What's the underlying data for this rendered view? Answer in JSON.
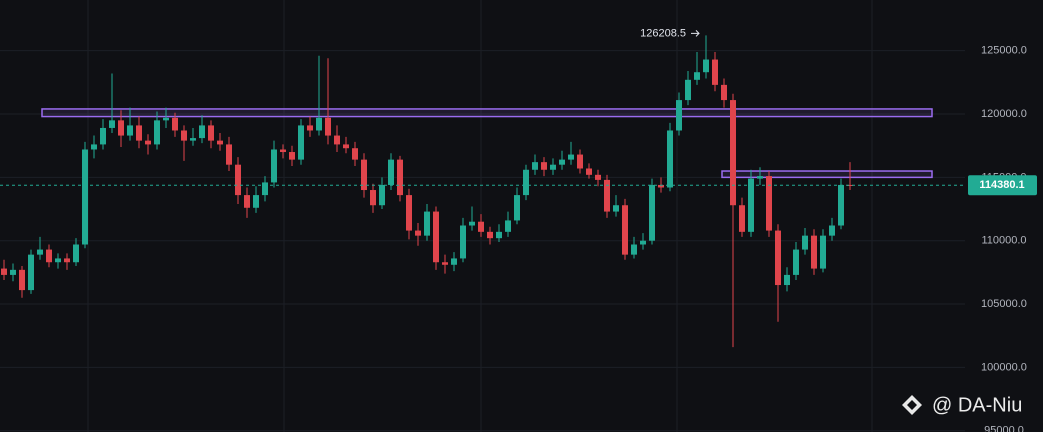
{
  "chart_data": {
    "type": "candlestick",
    "up_color": "#22ab94",
    "down_color": "#e0454c",
    "ylim": [
      94900,
      129000
    ],
    "yticks": [
      {
        "value": 95000,
        "label": "95000.0"
      },
      {
        "value": 100000,
        "label": "100000.0"
      },
      {
        "value": 105000,
        "label": "105000.0"
      },
      {
        "value": 110000,
        "label": "110000.0"
      },
      {
        "value": 115000,
        "label": "115000.0"
      },
      {
        "value": 120000,
        "label": "120000.0"
      },
      {
        "value": 125000,
        "label": "125000.0"
      }
    ],
    "grid": true,
    "last_price": 114380.1,
    "zones": [
      {
        "from": 119800,
        "to": 120400,
        "color": "#9b6cf0"
      },
      {
        "from": 115000,
        "to": 115500,
        "color": "#9b6cf0"
      }
    ],
    "watermark": "@ DA-Niu",
    "ohlc": [
      [
        107800,
        108500,
        106900,
        107300
      ],
      [
        107300,
        108200,
        106800,
        107700
      ],
      [
        107700,
        108000,
        105500,
        106100
      ],
      [
        106100,
        109300,
        105800,
        108900
      ],
      [
        108900,
        110300,
        108500,
        109300
      ],
      [
        109300,
        109700,
        107900,
        108300
      ],
      [
        108300,
        109000,
        107800,
        108600
      ],
      [
        108600,
        109000,
        107700,
        108300
      ],
      [
        108300,
        110200,
        108000,
        109700
      ],
      [
        109700,
        117800,
        109400,
        117200
      ],
      [
        117200,
        118300,
        116500,
        117600
      ],
      [
        117600,
        119600,
        117200,
        118900
      ],
      [
        118900,
        123200,
        118500,
        119500
      ],
      [
        119500,
        120300,
        117400,
        118300
      ],
      [
        118300,
        120500,
        117900,
        119100
      ],
      [
        119100,
        119800,
        117300,
        117900
      ],
      [
        117900,
        118400,
        116800,
        117600
      ],
      [
        117600,
        120200,
        117200,
        119500
      ],
      [
        119500,
        120500,
        118900,
        119700
      ],
      [
        119700,
        120100,
        118200,
        118700
      ],
      [
        118700,
        119100,
        116300,
        117900
      ],
      [
        117900,
        118900,
        117500,
        118100
      ],
      [
        118100,
        119900,
        117700,
        119100
      ],
      [
        119100,
        119500,
        117300,
        117900
      ],
      [
        117900,
        118500,
        117100,
        117600
      ],
      [
        117600,
        118200,
        115500,
        116000
      ],
      [
        116000,
        116600,
        112900,
        113600
      ],
      [
        113600,
        114200,
        111800,
        112600
      ],
      [
        112600,
        114300,
        112200,
        113600
      ],
      [
        113600,
        115100,
        113100,
        114600
      ],
      [
        114600,
        117900,
        114200,
        117200
      ],
      [
        117200,
        117600,
        116500,
        117000
      ],
      [
        117000,
        117500,
        115900,
        116400
      ],
      [
        116400,
        119600,
        116000,
        119100
      ],
      [
        119100,
        119800,
        118200,
        118700
      ],
      [
        118700,
        124600,
        118300,
        119700
      ],
      [
        119700,
        124400,
        117600,
        118300
      ],
      [
        118300,
        119100,
        117000,
        117600
      ],
      [
        117600,
        118200,
        116900,
        117300
      ],
      [
        117300,
        117800,
        115900,
        116400
      ],
      [
        116400,
        116900,
        113400,
        114000
      ],
      [
        114000,
        114500,
        112200,
        112800
      ],
      [
        112800,
        115000,
        112500,
        114400
      ],
      [
        114400,
        116900,
        114000,
        116400
      ],
      [
        116400,
        116700,
        113100,
        113600
      ],
      [
        113600,
        114100,
        110100,
        110800
      ],
      [
        110800,
        111400,
        109600,
        110400
      ],
      [
        110400,
        112900,
        110000,
        112300
      ],
      [
        112300,
        112700,
        107700,
        108300
      ],
      [
        108300,
        108900,
        107400,
        108100
      ],
      [
        108100,
        109100,
        107600,
        108600
      ],
      [
        108600,
        111800,
        108300,
        111200
      ],
      [
        111200,
        112700,
        110800,
        111500
      ],
      [
        111500,
        112100,
        110300,
        110700
      ],
      [
        110700,
        111100,
        109700,
        110200
      ],
      [
        110200,
        111300,
        109900,
        110700
      ],
      [
        110700,
        112300,
        110300,
        111600
      ],
      [
        111600,
        114200,
        111300,
        113600
      ],
      [
        113600,
        116000,
        113200,
        115600
      ],
      [
        115600,
        116800,
        115200,
        116200
      ],
      [
        116200,
        116600,
        115100,
        115600
      ],
      [
        115600,
        116500,
        115200,
        116000
      ],
      [
        116000,
        117100,
        115600,
        116400
      ],
      [
        116400,
        117800,
        116000,
        116800
      ],
      [
        116800,
        117200,
        115300,
        115700
      ],
      [
        115700,
        116100,
        114900,
        115200
      ],
      [
        115200,
        115600,
        114300,
        114800
      ],
      [
        114800,
        115200,
        111800,
        112300
      ],
      [
        112300,
        113600,
        111900,
        112800
      ],
      [
        112800,
        113300,
        108500,
        108900
      ],
      [
        108900,
        110300,
        108600,
        109700
      ],
      [
        109700,
        110600,
        109300,
        110000
      ],
      [
        110000,
        114900,
        109700,
        114400
      ],
      [
        114400,
        115000,
        113800,
        114200
      ],
      [
        114200,
        119300,
        113900,
        118700
      ],
      [
        118700,
        121700,
        118300,
        121100
      ],
      [
        121100,
        123400,
        120700,
        122700
      ],
      [
        122700,
        124900,
        122300,
        123300
      ],
      [
        123300,
        126208.5,
        122800,
        124300
      ],
      [
        124300,
        124900,
        121800,
        122300
      ],
      [
        122300,
        122800,
        120500,
        121100
      ],
      [
        121100,
        121600,
        101600,
        112800
      ],
      [
        112800,
        113400,
        110300,
        110700
      ],
      [
        110700,
        115600,
        110300,
        114900
      ],
      [
        114900,
        115800,
        114400,
        115100
      ],
      [
        115100,
        115500,
        110300,
        110800
      ],
      [
        110800,
        111300,
        103600,
        106500
      ],
      [
        106500,
        107900,
        106000,
        107300
      ],
      [
        107300,
        109900,
        106900,
        109300
      ],
      [
        109300,
        111000,
        108900,
        110400
      ],
      [
        110400,
        110900,
        107300,
        107800
      ],
      [
        107800,
        110900,
        107500,
        110400
      ],
      [
        110400,
        111800,
        110000,
        111200
      ],
      [
        111200,
        114900,
        110900,
        114400
      ],
      [
        114400,
        116200,
        114000,
        114380.1
      ]
    ]
  }
}
